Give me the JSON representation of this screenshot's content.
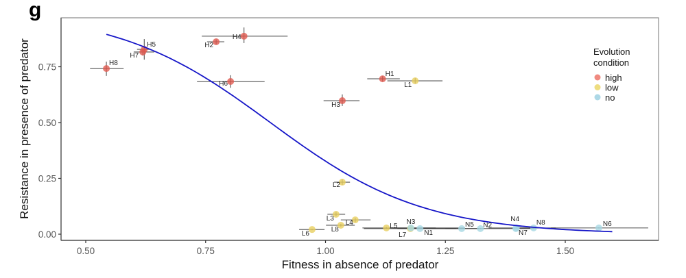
{
  "chart_data": {
    "type": "scatter",
    "panel_label": "g",
    "title": "",
    "xlabel": "Fitness in absence of predator",
    "ylabel": "Resistance in presence of predator",
    "xlim": [
      0.44,
      1.71
    ],
    "ylim": [
      -0.028,
      0.97
    ],
    "x_ticks": [
      0.5,
      0.75,
      1.0,
      1.25,
      1.5
    ],
    "x_tick_labels": [
      "0.50",
      "0.75",
      "1.00",
      "1.25",
      "1.50"
    ],
    "y_ticks": [
      0.0,
      0.25,
      0.5,
      0.75
    ],
    "y_tick_labels": [
      "0.00",
      "0.25",
      "0.50",
      "0.75"
    ],
    "grid": false,
    "legend": {
      "title": "Evolution condition",
      "title_lines": [
        "Evolution",
        "condition"
      ],
      "position": "right",
      "entries": [
        {
          "name": "high",
          "color": "#F08A80"
        },
        {
          "name": "low",
          "color": "#EEDD80"
        },
        {
          "name": "no",
          "color": "#ADD8E6"
        }
      ]
    },
    "colors": {
      "high_point": "#E05A50",
      "low_point": "#E8D060",
      "no_point": "#A8D8E4",
      "errorbar": "#333333",
      "fit_line": "#1515C8",
      "axis": "#555555"
    },
    "fit_curve": {
      "type": "logistic",
      "x0": 0.885,
      "k": 6.27,
      "x_range": [
        0.543,
        1.598
      ]
    },
    "series": [
      {
        "name": "high",
        "points": [
          {
            "label": "H1",
            "x": 1.119,
            "y": 0.696,
            "xerr": [
              1.087,
              1.155
            ],
            "yerr": [
              0.685,
              0.708
            ]
          },
          {
            "label": "H2",
            "x": 0.772,
            "y": 0.862,
            "xerr": [
              0.753,
              0.789
            ],
            "yerr": [
              0.852,
              0.872
            ]
          },
          {
            "label": "H3",
            "x": 1.035,
            "y": 0.598,
            "xerr": [
              0.996,
              1.071
            ],
            "yerr": [
              0.574,
              0.626
            ]
          },
          {
            "label": "H4",
            "x": 0.83,
            "y": 0.887,
            "xerr": [
              0.742,
              0.921
            ],
            "yerr": [
              0.856,
              0.926
            ]
          },
          {
            "label": "H5",
            "x": 0.622,
            "y": 0.828,
            "xerr": [
              0.607,
              0.636
            ],
            "yerr": [
              0.782,
              0.874
            ]
          },
          {
            "label": "H6",
            "x": 0.802,
            "y": 0.684,
            "xerr": [
              0.732,
              0.873
            ],
            "yerr": [
              0.656,
              0.712
            ]
          },
          {
            "label": "H7",
            "x": 0.619,
            "y": 0.816,
            "xerr": [
              0.6,
              0.643
            ],
            "yerr": [
              0.8,
              0.83
            ]
          },
          {
            "label": "H8",
            "x": 0.543,
            "y": 0.742,
            "xerr": [
              0.509,
              0.579
            ],
            "yerr": [
              0.709,
              0.773
            ]
          }
        ]
      },
      {
        "name": "low",
        "points": [
          {
            "label": "L1",
            "x": 1.187,
            "y": 0.687,
            "xerr": [
              1.129,
              1.244
            ],
            "yerr": [
              0.675,
              0.699
            ]
          },
          {
            "label": "L2",
            "x": 1.035,
            "y": 0.233,
            "xerr": [
              1.018,
              1.051
            ],
            "yerr": [
              0.221,
              0.245
            ]
          },
          {
            "label": "L3",
            "x": 1.022,
            "y": 0.089,
            "xerr": [
              1.004,
              1.041
            ],
            "yerr": [
              0.08,
              0.098
            ]
          },
          {
            "label": "L4",
            "x": 1.062,
            "y": 0.064,
            "xerr": [
              1.032,
              1.094
            ],
            "yerr": [
              0.055,
              0.073
            ]
          },
          {
            "label": "L5",
            "x": 1.127,
            "y": 0.028,
            "xerr": [
              1.077,
              1.291
            ],
            "yerr": [
              0.024,
              0.032
            ]
          },
          {
            "label": "L6",
            "x": 0.972,
            "y": 0.021,
            "xerr": [
              0.945,
              0.998
            ],
            "yerr": [
              0.018,
              0.024
            ]
          },
          {
            "label": "L7",
            "x": 1.177,
            "y": 0.025,
            "xerr": [
              1.08,
              1.273
            ],
            "yerr": [
              0.022,
              0.028
            ]
          },
          {
            "label": "L8",
            "x": 1.032,
            "y": 0.04,
            "xerr": [
              1.001,
              1.061
            ],
            "yerr": [
              0.034,
              0.046
            ]
          }
        ]
      },
      {
        "name": "no",
        "points": [
          {
            "label": "N1",
            "x": 1.197,
            "y": 0.025,
            "xerr": [
              1.15,
              1.29
            ],
            "yerr": [
              0.023,
              0.027
            ]
          },
          {
            "label": "N2",
            "x": 1.323,
            "y": 0.025,
            "xerr": [
              1.29,
              1.34
            ],
            "yerr": [
              0.023,
              0.027
            ]
          },
          {
            "label": "N3",
            "x": 1.178,
            "y": 0.028,
            "xerr": [
              1.14,
              1.23
            ],
            "yerr": [
              0.026,
              0.03
            ]
          },
          {
            "label": "N4",
            "x": 1.398,
            "y": 0.028,
            "xerr": [
              1.34,
              1.45
            ],
            "yerr": [
              0.026,
              0.03
            ]
          },
          {
            "label": "N5",
            "x": 1.284,
            "y": 0.025,
            "xerr": [
              1.25,
              1.32
            ],
            "yerr": [
              0.023,
              0.027
            ]
          },
          {
            "label": "N6",
            "x": 1.57,
            "y": 0.028,
            "xerr": [
              1.47,
              1.673
            ],
            "yerr": [
              0.026,
              0.03
            ]
          },
          {
            "label": "N7",
            "x": 1.397,
            "y": 0.025,
            "xerr": [
              1.34,
              1.44
            ],
            "yerr": [
              0.023,
              0.027
            ]
          },
          {
            "label": "N8",
            "x": 1.434,
            "y": 0.028,
            "xerr": [
              1.39,
              1.48
            ],
            "yerr": [
              0.026,
              0.03
            ]
          }
        ]
      }
    ]
  }
}
